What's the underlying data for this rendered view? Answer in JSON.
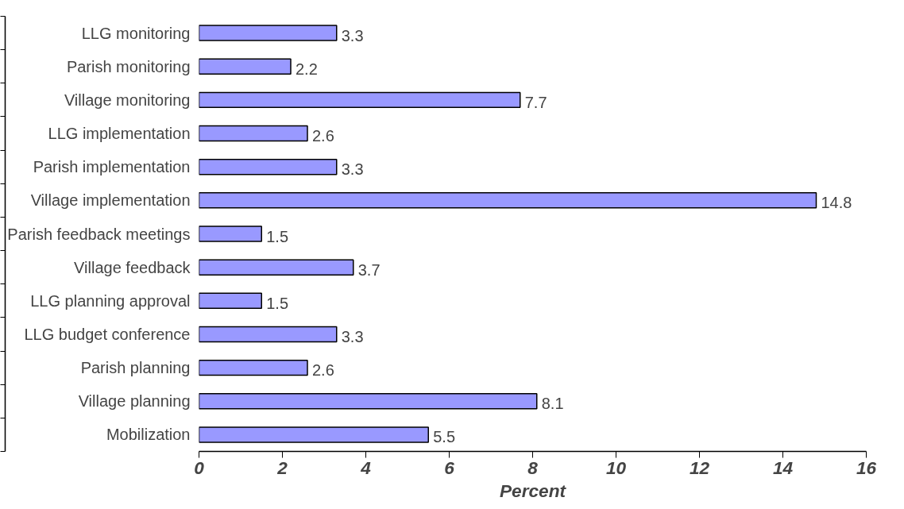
{
  "chart_data": {
    "type": "bar",
    "orientation": "horizontal",
    "xlabel": "Percent",
    "categories": [
      "LLG monitoring",
      "Parish monitoring",
      "Village monitoring",
      "LLG implementation",
      "Parish implementation",
      "Village implementation",
      "Parish feedback meetings",
      "Village feedback",
      "LLG planning approval",
      "LLG budget conference",
      "Parish planning",
      "Village planning",
      "Mobilization"
    ],
    "values": [
      3.3,
      2.2,
      7.7,
      2.6,
      3.3,
      14.8,
      1.5,
      3.7,
      1.5,
      3.3,
      2.6,
      8.1,
      5.5
    ],
    "color": "#9999ff",
    "xlim": [
      0,
      16
    ],
    "xticks": [
      0,
      2,
      4,
      6,
      8,
      10,
      12,
      14,
      16
    ],
    "data_labels": true,
    "grid": false
  }
}
